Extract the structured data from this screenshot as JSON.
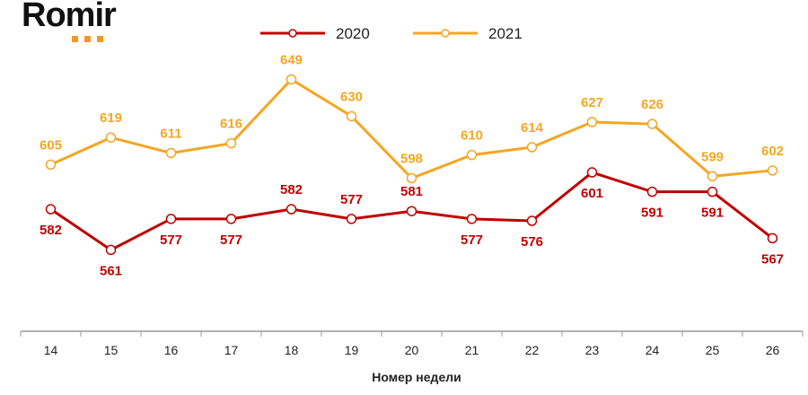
{
  "logo": "Romir",
  "chart_data": {
    "type": "line",
    "title": "",
    "xlabel": "Номер недели",
    "ylabel": "",
    "x": [
      "14",
      "15",
      "16",
      "17",
      "18",
      "19",
      "20",
      "21",
      "22",
      "23",
      "24",
      "25",
      "26"
    ],
    "ylim": [
      519,
      690
    ],
    "grid": false,
    "legend_placement": "top",
    "series": [
      {
        "name": "2020",
        "color": "#c00000",
        "values": [
          582,
          561,
          577,
          577,
          582,
          577,
          581,
          577,
          576,
          601,
          591,
          591,
          567
        ],
        "label_pos": [
          "below",
          "below",
          "below",
          "below",
          "above",
          "above",
          "above",
          "below",
          "below",
          "below",
          "below",
          "below",
          "below"
        ]
      },
      {
        "name": "2021",
        "color": "#f5a623",
        "values": [
          605,
          619,
          611,
          616,
          649,
          630,
          598,
          610,
          614,
          627,
          626,
          599,
          602
        ],
        "label_pos": [
          "above",
          "above",
          "above",
          "above",
          "above",
          "above",
          "above",
          "above",
          "above",
          "above",
          "above",
          "above",
          "above"
        ]
      }
    ]
  }
}
